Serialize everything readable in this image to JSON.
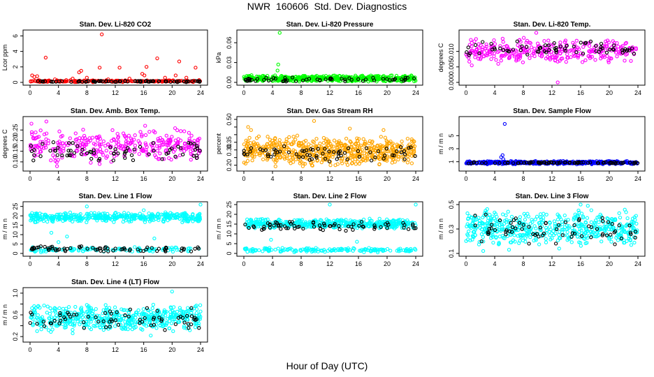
{
  "title": "NWR  160606  Std. Dev. Diagnostics",
  "xlabel": "Hour of Day (UTC)",
  "x_range": [
    0,
    24
  ],
  "x_ticks": [
    0,
    4,
    8,
    12,
    16,
    20,
    24
  ],
  "colors": {
    "red": "#ff0000",
    "green": "#00ff00",
    "magenta": "#ff00ff",
    "orange": "#ffa500",
    "blue": "#0000ff",
    "cyan": "#00ffff",
    "black": "#000000"
  },
  "chart_data": [
    {
      "type": "scatter",
      "title": "Stan. Dev. Li-820 CO2",
      "ylabel": "Lcor ppm",
      "ylim": [
        0,
        6.4
      ],
      "yticks": [
        0,
        2,
        4,
        6
      ],
      "series": [
        {
          "name": "all",
          "color": "#ff0000",
          "points": [
            [
              0.3,
              0.9
            ],
            [
              0.6,
              0.7
            ],
            [
              1.0,
              0.8
            ],
            [
              2.2,
              3.2
            ],
            [
              3.5,
              0.4
            ],
            [
              5.1,
              0.3
            ],
            [
              6.0,
              0.5
            ],
            [
              6.9,
              1.3
            ],
            [
              7.2,
              1.5
            ],
            [
              8.0,
              0.6
            ],
            [
              9.8,
              1.9
            ],
            [
              10.1,
              6.2
            ],
            [
              11.0,
              0.4
            ],
            [
              12.6,
              1.9
            ],
            [
              14.0,
              0.5
            ],
            [
              15.8,
              1.1
            ],
            [
              16.1,
              0.9
            ],
            [
              16.4,
              2.0
            ],
            [
              17.9,
              3.1
            ],
            [
              19.0,
              0.6
            ],
            [
              20.5,
              0.9
            ],
            [
              21.0,
              2.7
            ],
            [
              22.0,
              0.6
            ],
            [
              23.3,
              1.9
            ],
            [
              23.8,
              0.3
            ]
          ],
          "band": {
            "min": 0.02,
            "max": 0.3,
            "count": 200
          }
        },
        {
          "name": "mean",
          "color": "#000000",
          "band": {
            "min": 0.02,
            "max": 0.22,
            "count": 80
          }
        }
      ]
    },
    {
      "type": "scatter",
      "title": "Stan. Dev. Li-820 Pressure",
      "ylabel": "kPa",
      "ylim": [
        0,
        0.075
      ],
      "yticks": [
        0.0,
        0.03,
        0.06
      ],
      "tick_labels": [
        "0.00",
        "0.03",
        "0.06"
      ],
      "series": [
        {
          "name": "all",
          "color": "#00ff00",
          "points": [
            [
              5.0,
              0.075
            ],
            [
              4.8,
              0.027
            ],
            [
              4.7,
              0.018
            ]
          ],
          "band": {
            "min": 0.001,
            "max": 0.011,
            "count": 520
          }
        },
        {
          "name": "mean",
          "color": "#000000",
          "band": {
            "min": 0.001,
            "max": 0.008,
            "count": 60
          }
        }
      ]
    },
    {
      "type": "scatter",
      "title": "Stan. Dev. Li-820 Temp.",
      "ylabel": "degrees C",
      "ylim": [
        0,
        0.016
      ],
      "yticks": [
        0.0,
        0.005,
        0.01
      ],
      "tick_labels": [
        "0.000",
        "0.005",
        "0.010"
      ],
      "series": [
        {
          "name": "all",
          "color": "#ff00ff",
          "points": [
            [
              9.8,
              0.016
            ],
            [
              12.8,
              0.0
            ],
            [
              0.8,
              0.0055
            ],
            [
              4.5,
              0.006
            ],
            [
              2.0,
              0.0075
            ],
            [
              7.0,
              0.007
            ]
          ],
          "band": {
            "min": 0.006,
            "max": 0.0145,
            "count": 320
          }
        },
        {
          "name": "mean",
          "color": "#000000",
          "band": {
            "min": 0.0085,
            "max": 0.0135,
            "count": 70
          }
        }
      ]
    },
    {
      "type": "scatter",
      "title": "Stan. Dev. Amb. Box Temp.",
      "ylabel": "degrees C",
      "ylim": [
        0.07,
        0.3
      ],
      "yticks": [
        0.1,
        0.15,
        0.2,
        0.25
      ],
      "tick_labels": [
        "0.10",
        "0.15",
        "0.20",
        "0.25"
      ],
      "series": [
        {
          "name": "all",
          "color": "#ff00ff",
          "points": [
            [
              0.2,
              0.28
            ],
            [
              2.3,
              0.29
            ],
            [
              3.8,
              0.08
            ],
            [
              9.8,
              0.09
            ],
            [
              16.2,
              0.27
            ]
          ],
          "band": {
            "min": 0.09,
            "max": 0.26,
            "count": 320
          }
        },
        {
          "name": "mean",
          "color": "#000000",
          "band": {
            "min": 0.1,
            "max": 0.2,
            "count": 70
          }
        }
      ]
    },
    {
      "type": "scatter",
      "title": "Stan. Dev. Gas Stream RH",
      "ylabel": "percent",
      "ylim": [
        0.18,
        0.5
      ],
      "yticks": [
        0.2,
        0.25,
        0.3,
        0.35,
        0.4,
        0.45,
        0.5
      ],
      "tick_labels": [
        "0.20",
        "",
        "0.30",
        "0.35",
        "",
        "",
        "0.50"
      ],
      "series": [
        {
          "name": "all",
          "color": "#ffa500",
          "points": [
            [
              0.6,
              0.45
            ],
            [
              1.0,
              0.43
            ],
            [
              9.8,
              0.49
            ],
            [
              14.8,
              0.44
            ],
            [
              19.5,
              0.43
            ]
          ],
          "band": {
            "min": 0.19,
            "max": 0.4,
            "count": 600
          }
        },
        {
          "name": "mean",
          "color": "#000000",
          "band": {
            "min": 0.22,
            "max": 0.33,
            "count": 70
          }
        }
      ]
    },
    {
      "type": "scatter",
      "title": "Stan. Dev. Sample Flow",
      "ylabel": "m / m n",
      "ylim": [
        0,
        7.5
      ],
      "yticks": [
        1,
        3,
        5
      ],
      "tick_labels": [
        "1",
        "3",
        "5"
      ],
      "series": [
        {
          "name": "all",
          "color": "#0000ff",
          "points": [
            [
              5.4,
              6.8
            ],
            [
              5.1,
              2.0
            ],
            [
              4.9,
              1.7
            ],
            [
              5.2,
              1.4
            ]
          ],
          "band": {
            "min": 0.6,
            "max": 1.15,
            "count": 420
          }
        },
        {
          "name": "mean",
          "color": "#000000",
          "band": {
            "min": 0.7,
            "max": 1.0,
            "count": 80
          }
        }
      ]
    },
    {
      "type": "scatter",
      "title": "Stan. Dev. Line 1 Flow",
      "ylabel": "m / m n",
      "ylim": [
        0,
        26
      ],
      "yticks": [
        0,
        5,
        10,
        15,
        20,
        25
      ],
      "series": [
        {
          "name": "all",
          "color": "#00ffff",
          "points": [
            [
              24.0,
              26
            ],
            [
              8.0,
              25
            ],
            [
              16.0,
              23
            ],
            [
              3.0,
              11
            ],
            [
              5.2,
              9
            ],
            [
              4.0,
              6
            ],
            [
              17.5,
              8
            ]
          ],
          "band": {
            "min": 16.5,
            "max": 22.0,
            "count": 420
          }
        },
        {
          "name": "low",
          "color": "#00ffff",
          "band": {
            "min": 0.5,
            "max": 3.5,
            "count": 120
          }
        },
        {
          "name": "mean",
          "color": "#000000",
          "band": {
            "min": 0.8,
            "max": 4.0,
            "count": 70
          }
        }
      ]
    },
    {
      "type": "scatter",
      "title": "Stan. Dev. Line 2 Flow",
      "ylabel": "m / m n",
      "ylim": [
        0,
        25
      ],
      "yticks": [
        0,
        5,
        10,
        15,
        20,
        25
      ],
      "series": [
        {
          "name": "all",
          "color": "#00ffff",
          "points": [
            [
              12.0,
              25
            ],
            [
              24.0,
              25
            ],
            [
              22.5,
              13
            ],
            [
              3.8,
              7
            ],
            [
              15.8,
              6
            ]
          ],
          "band": {
            "min": 12.5,
            "max": 18.0,
            "count": 420
          }
        },
        {
          "name": "low",
          "color": "#00ffff",
          "band": {
            "min": 0.5,
            "max": 3.0,
            "count": 160
          }
        },
        {
          "name": "mean",
          "color": "#000000",
          "band": {
            "min": 11.5,
            "max": 16.5,
            "count": 70
          }
        }
      ]
    },
    {
      "type": "scatter",
      "title": "Stan. Dev. Line 3 Flow",
      "ylabel": "m / m n",
      "ylim": [
        0.1,
        0.5
      ],
      "yticks": [
        0.1,
        0.3,
        0.5
      ],
      "tick_labels": [
        "0.1",
        "0.3",
        "0.5"
      ],
      "series": [
        {
          "name": "all",
          "color": "#00ffff",
          "points": [
            [
              16.0,
              0.5
            ],
            [
              17.0,
              0.49
            ],
            [
              2.4,
              0.12
            ],
            [
              13.0,
              0.14
            ],
            [
              6.0,
              0.13
            ]
          ],
          "band": {
            "min": 0.15,
            "max": 0.47,
            "count": 520
          }
        },
        {
          "name": "mean",
          "color": "#000000",
          "band": {
            "min": 0.17,
            "max": 0.44,
            "count": 70
          }
        }
      ]
    },
    {
      "type": "scatter",
      "title": "Stan. Dev. Line 4 (LT) Flow",
      "ylabel": "m / m n",
      "ylim": [
        0.15,
        1.05
      ],
      "yticks": [
        0.2,
        0.4,
        0.6,
        0.8,
        1.0
      ],
      "tick_labels": [
        "0.2",
        "",
        "0.6",
        "",
        "1.0"
      ],
      "series": [
        {
          "name": "all",
          "color": "#00ffff",
          "points": [
            [
              20.0,
              1.03
            ],
            [
              17.0,
              0.22
            ],
            [
              6.0,
              0.26
            ]
          ],
          "band": {
            "min": 0.28,
            "max": 0.8,
            "count": 520
          }
        },
        {
          "name": "mean",
          "color": "#000000",
          "band": {
            "min": 0.3,
            "max": 0.75,
            "count": 70
          }
        }
      ]
    }
  ]
}
